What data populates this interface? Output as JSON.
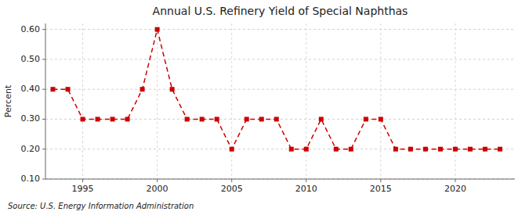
{
  "chart_data": {
    "type": "line",
    "title": "Annual U.S. Refinery Yield of Special Naphthas",
    "ylabel": "Percent",
    "annotations": [
      "Source: U.S. Energy Information Administration"
    ],
    "x": [
      1993,
      1994,
      1995,
      1996,
      1997,
      1998,
      1999,
      2000,
      2001,
      2002,
      2003,
      2004,
      2005,
      2006,
      2007,
      2008,
      2009,
      2010,
      2011,
      2012,
      2013,
      2014,
      2015,
      2016,
      2017,
      2018,
      2019,
      2020,
      2021,
      2022,
      2023
    ],
    "values": [
      0.4,
      0.4,
      0.3,
      0.3,
      0.3,
      0.3,
      0.4,
      0.6,
      0.4,
      0.3,
      0.3,
      0.3,
      0.2,
      0.3,
      0.3,
      0.3,
      0.2,
      0.2,
      0.3,
      0.2,
      0.2,
      0.3,
      0.3,
      0.2,
      0.2,
      0.2,
      0.2,
      0.2,
      0.2,
      0.2,
      0.2
    ],
    "color": "#cc0000",
    "marker": "square",
    "line_style": "dashed",
    "xlim": [
      1992.5,
      2024
    ],
    "xticks": [
      1995,
      2000,
      2005,
      2010,
      2015,
      2020
    ],
    "ylim": [
      0.1,
      0.62
    ],
    "yticks": [
      {
        "value": 0.1,
        "label": "0.10"
      },
      {
        "value": 0.2,
        "label": "0.20"
      },
      {
        "value": 0.3,
        "label": "0.30"
      },
      {
        "value": 0.4,
        "label": "0.40"
      },
      {
        "value": 0.5,
        "label": "0.50"
      },
      {
        "value": 0.6,
        "label": "0.60"
      }
    ],
    "grid": true
  }
}
